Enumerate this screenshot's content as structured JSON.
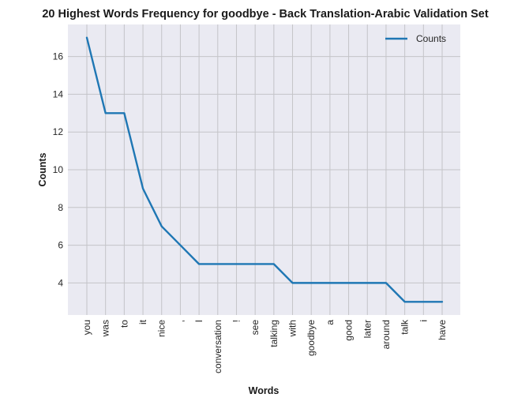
{
  "chart_data": {
    "type": "line",
    "title": "20 Highest Words Frequency for goodbye - Back Translation-Arabic Validation Set",
    "xlabel": "Words",
    "ylabel": "Counts",
    "categories": [
      "you",
      "was",
      "to",
      "it",
      "nice",
      ",",
      "I",
      "conversation",
      "!",
      "see",
      "talking",
      "with",
      "goodbye",
      "a",
      "good",
      "later",
      "around",
      "talk",
      "i",
      "have"
    ],
    "series": [
      {
        "name": "Counts",
        "values": [
          17,
          13,
          13,
          9,
          7,
          6,
          5,
          5,
          5,
          5,
          5,
          4,
          4,
          4,
          4,
          4,
          4,
          3,
          3,
          3
        ]
      }
    ],
    "ylim": [
      2.3,
      17.7
    ],
    "yticks": [
      4,
      6,
      8,
      10,
      12,
      14,
      16
    ],
    "grid": true,
    "legend_position": "top-right",
    "line_color": "#1f77b4",
    "background_color": "#eaeaf2",
    "grid_color": "#c4c4c8"
  }
}
